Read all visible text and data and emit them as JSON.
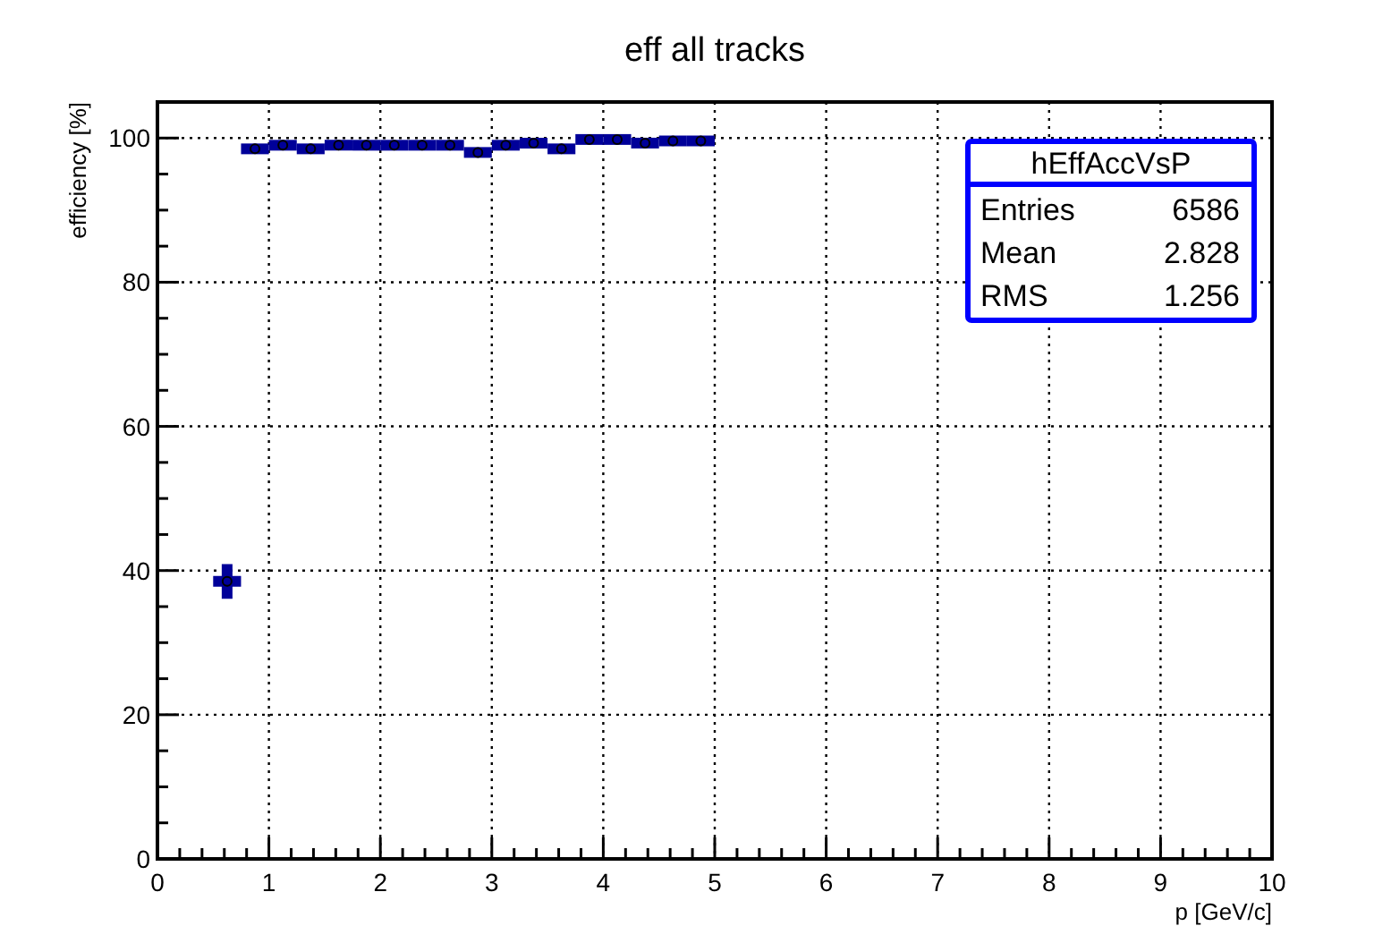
{
  "chart_data": {
    "type": "scatter",
    "title": "eff all tracks",
    "xlabel": "p [GeV/c]",
    "ylabel": "efficiency [%]",
    "x": [
      0.625,
      0.875,
      1.125,
      1.375,
      1.625,
      1.875,
      2.125,
      2.375,
      2.625,
      2.875,
      3.125,
      3.375,
      3.625,
      3.875,
      4.125,
      4.375,
      4.625,
      4.875
    ],
    "values": [
      38.5,
      98.5,
      99,
      98.5,
      99,
      99,
      99,
      99,
      99,
      98,
      99,
      99.3,
      98.5,
      99.8,
      99.8,
      99.3,
      99.6,
      99.6
    ],
    "errors": [
      2.4,
      null,
      null,
      null,
      null,
      null,
      null,
      null,
      null,
      null,
      null,
      null,
      null,
      null,
      null,
      null,
      null,
      null
    ],
    "xerrors": [
      0.125,
      0.125,
      0.125,
      0.125,
      0.125,
      0.125,
      0.125,
      0.125,
      0.125,
      0.125,
      0.125,
      0.125,
      0.125,
      0.125,
      0.125,
      0.125,
      0.125,
      0.125
    ],
    "color": "#000099",
    "xlim": [
      0,
      10
    ],
    "ylim": [
      0,
      105
    ],
    "xticks": [
      0,
      {
        "value": 0.2,
        "label": null
      },
      {
        "value": 0.4,
        "label": null
      },
      {
        "value": 0.6,
        "label": null
      },
      {
        "value": 0.8,
        "label": null
      },
      1,
      {
        "value": 1.2,
        "label": null
      },
      {
        "value": 1.4,
        "label": null
      },
      {
        "value": 1.6,
        "label": null
      },
      {
        "value": 1.8,
        "label": null
      },
      2,
      {
        "value": 2.2,
        "label": null
      },
      {
        "value": 2.4,
        "label": null
      },
      {
        "value": 2.6,
        "label": null
      },
      {
        "value": 2.8,
        "label": null
      },
      3,
      {
        "value": 3.2,
        "label": null
      },
      {
        "value": 3.4,
        "label": null
      },
      {
        "value": 3.6,
        "label": null
      },
      {
        "value": 3.8,
        "label": null
      },
      4,
      {
        "value": 4.2,
        "label": null
      },
      {
        "value": 4.4,
        "label": null
      },
      {
        "value": 4.6,
        "label": null
      },
      {
        "value": 4.8,
        "label": null
      },
      5,
      {
        "value": 5.2,
        "label": null
      },
      {
        "value": 5.4,
        "label": null
      },
      {
        "value": 5.6,
        "label": null
      },
      {
        "value": 5.8,
        "label": null
      },
      6,
      {
        "value": 6.2,
        "label": null
      },
      {
        "value": 6.4,
        "label": null
      },
      {
        "value": 6.6,
        "label": null
      },
      {
        "value": 6.8,
        "label": null
      },
      7,
      {
        "value": 7.2,
        "label": null
      },
      {
        "value": 7.4,
        "label": null
      },
      {
        "value": 7.6,
        "label": null
      },
      {
        "value": 7.8,
        "label": null
      },
      8,
      {
        "value": 8.2,
        "label": null
      },
      {
        "value": 8.4,
        "label": null
      },
      {
        "value": 8.6,
        "label": null
      },
      {
        "value": 8.8,
        "label": null
      },
      9,
      {
        "value": 9.2,
        "label": null
      },
      {
        "value": 9.4,
        "label": null
      },
      {
        "value": 9.6,
        "label": null
      },
      {
        "value": 9.8,
        "label": null
      },
      10
    ],
    "yticks": [
      0,
      {
        "value": 5,
        "label": null
      },
      {
        "value": 10,
        "label": null
      },
      {
        "value": 15,
        "label": null
      },
      20,
      {
        "value": 25,
        "label": null
      },
      {
        "value": 30,
        "label": null
      },
      {
        "value": 35,
        "label": null
      },
      40,
      {
        "value": 45,
        "label": null
      },
      {
        "value": 50,
        "label": null
      },
      {
        "value": 55,
        "label": null
      },
      60,
      {
        "value": 65,
        "label": null
      },
      {
        "value": 70,
        "label": null
      },
      {
        "value": 75,
        "label": null
      },
      80,
      {
        "value": 85,
        "label": null
      },
      {
        "value": 90,
        "label": null
      },
      {
        "value": 95,
        "label": null
      },
      100,
      {
        "value": 105,
        "label": null
      }
    ],
    "grid": true,
    "annotations": [
      "hEffAccVsP",
      "Entries",
      "6586",
      "Mean",
      "2.828",
      "RMS",
      "1.256"
    ]
  }
}
